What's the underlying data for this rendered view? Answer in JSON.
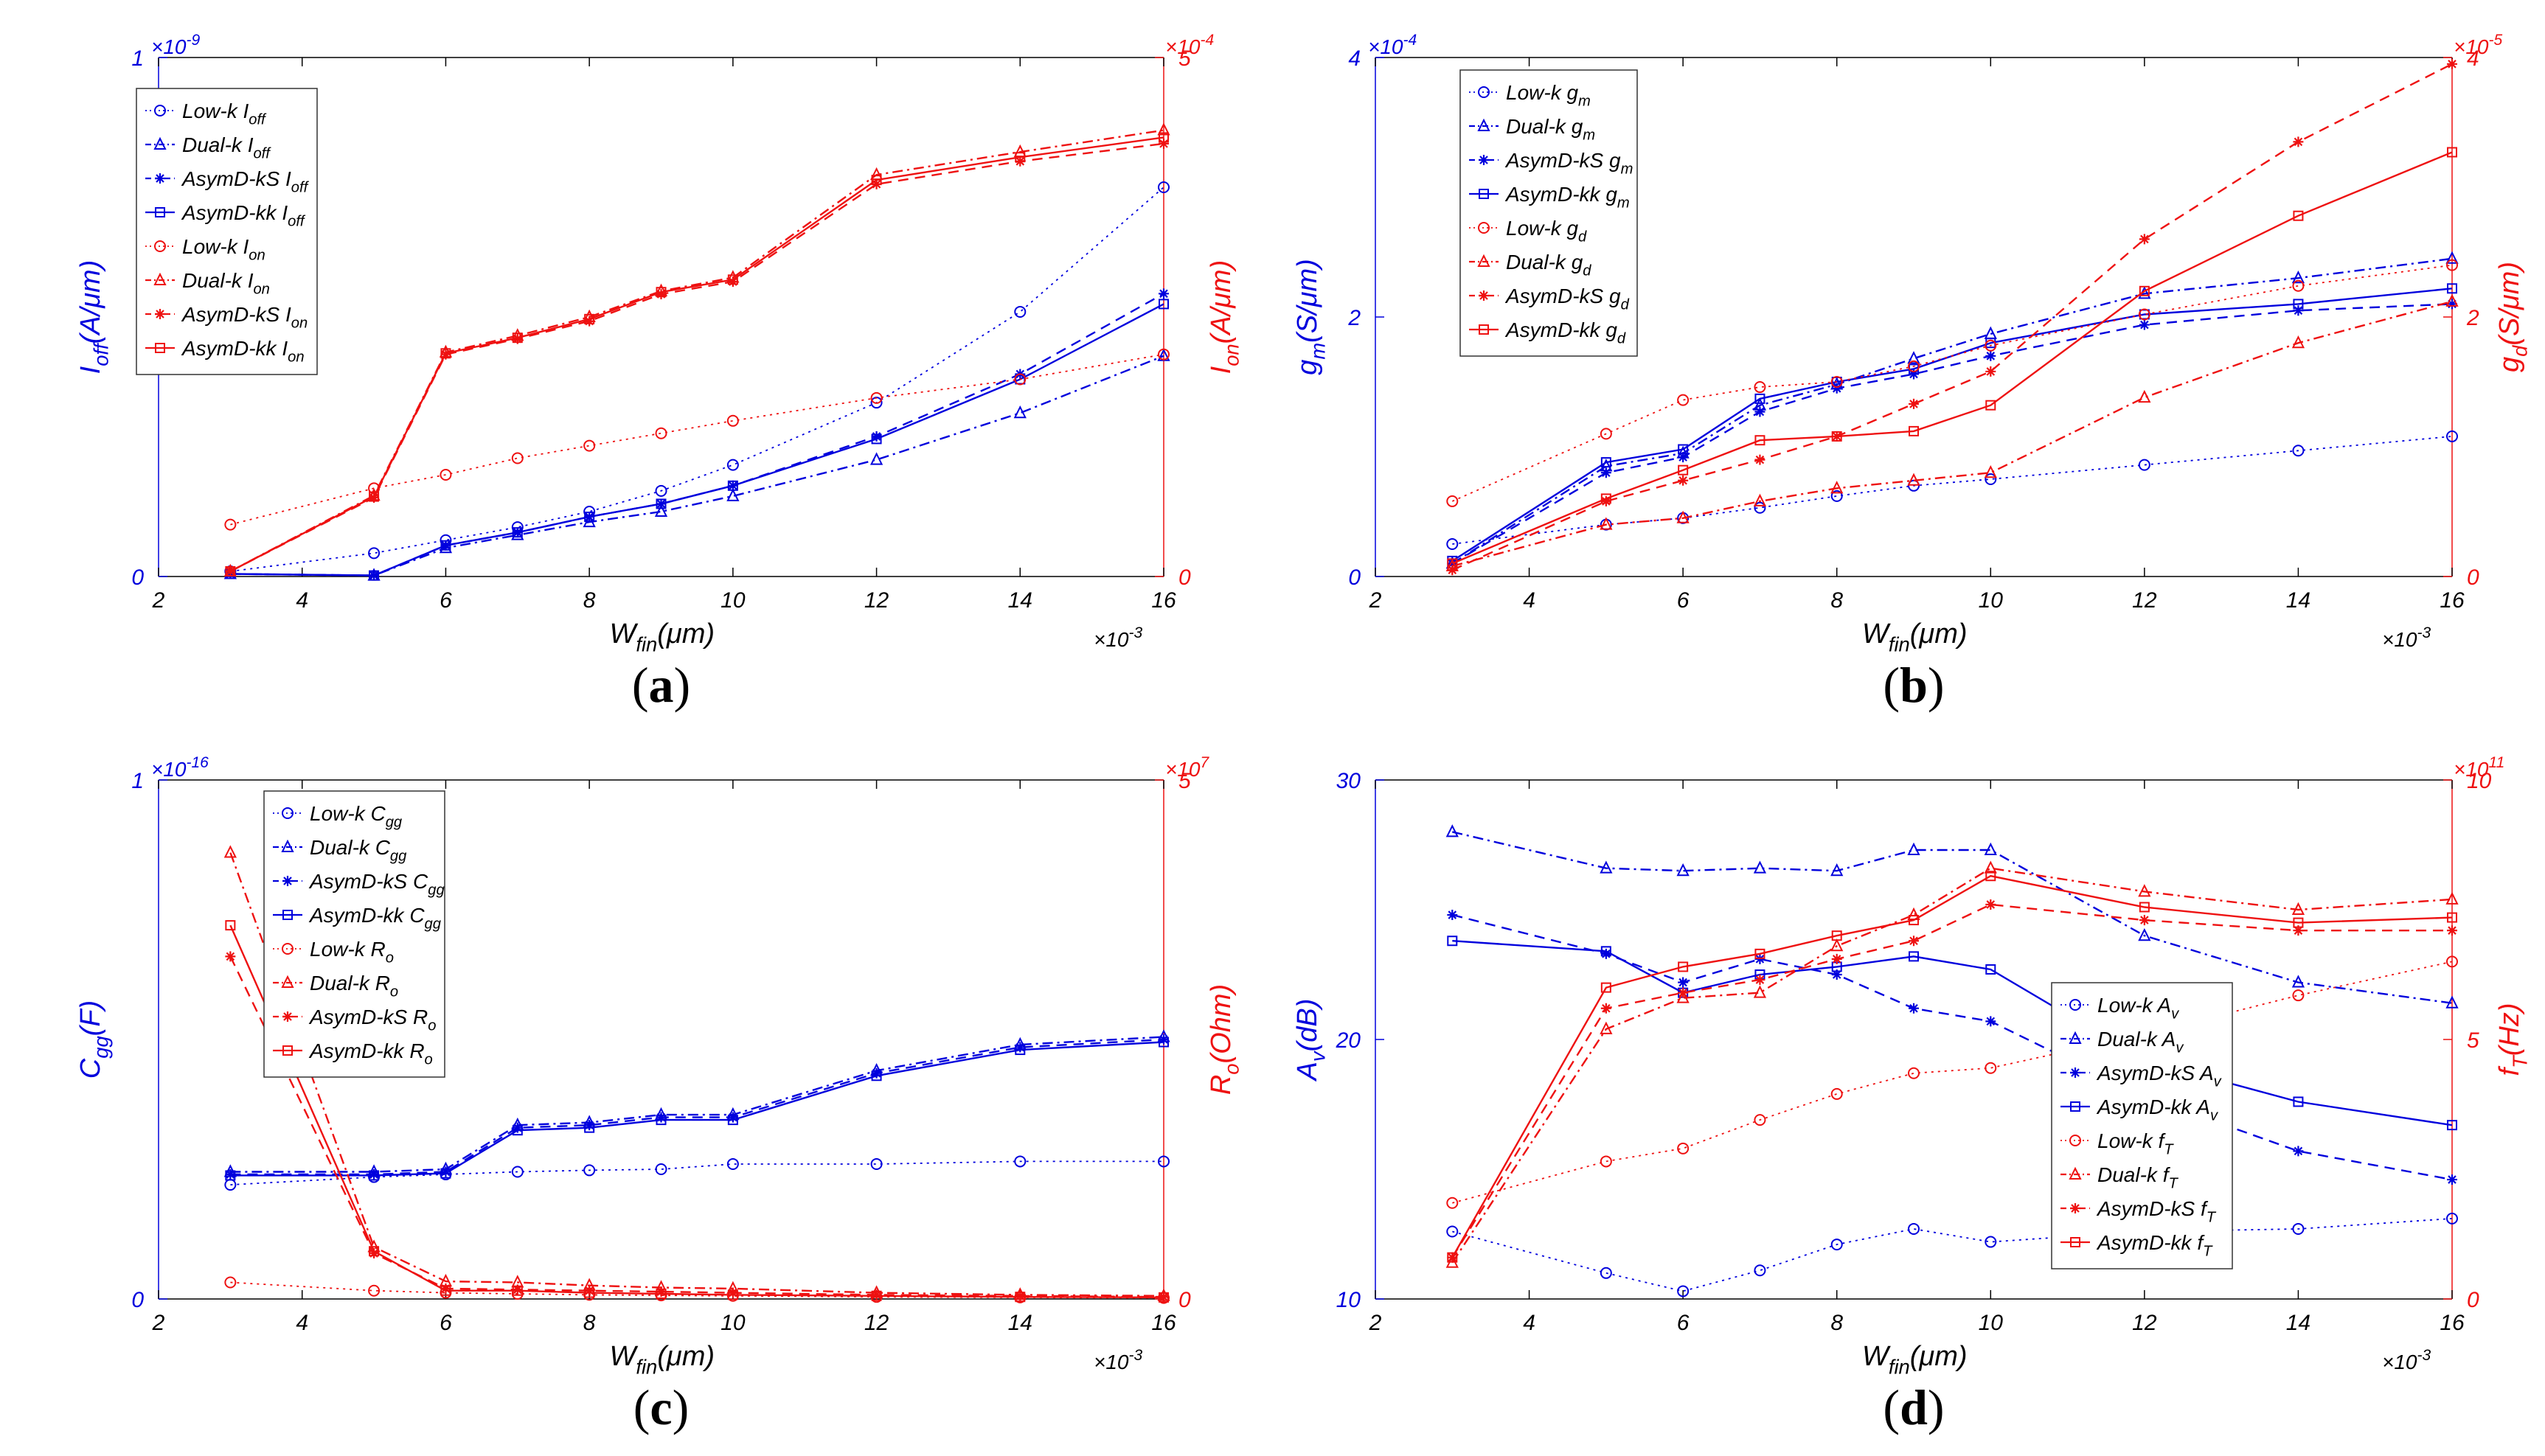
{
  "chart_data": [
    {
      "type": "line",
      "panel_label": "(a)",
      "x_multiplier": "×10",
      "x_multiplier_exp": "-3",
      "xticks": [
        2,
        4,
        6,
        8,
        10,
        12,
        14,
        16
      ],
      "xlim": [
        2,
        16
      ],
      "xlabel": {
        "main": "W",
        "sub": "fin",
        "tail": "(μm)"
      },
      "left": {
        "label": {
          "main": "I",
          "sub": "off",
          "tail": "(A/μm)"
        },
        "multiplier": "×10",
        "multiplier_exp": "-9",
        "ylim": [
          0,
          1
        ],
        "ticks": [
          0,
          1
        ],
        "color": "#0000dd"
      },
      "right": {
        "label": {
          "main": "I",
          "sub": "on",
          "tail": "(A/μm)"
        },
        "multiplier": "×10",
        "multiplier_exp": "-4",
        "ylim": [
          0,
          5
        ],
        "ticks": [
          0,
          5
        ],
        "color": "#ee1111"
      },
      "x": [
        3,
        5,
        6,
        7,
        8,
        9,
        10,
        12,
        14,
        16
      ],
      "legend": {
        "position": "top-left"
      },
      "series": [
        {
          "name": "Low-k",
          "sym": "I",
          "sub": "off",
          "axis": "left",
          "color": "#0000dd",
          "dash": "dotted",
          "marker": "circle",
          "values": [
            0.01,
            0.045,
            0.07,
            0.095,
            0.125,
            0.165,
            0.215,
            0.335,
            0.51,
            0.75
          ]
        },
        {
          "name": "Dual-k",
          "sym": "I",
          "sub": "off",
          "axis": "left",
          "color": "#0000dd",
          "dash": "dashdot",
          "marker": "triangle",
          "values": [
            0.005,
            0.002,
            0.055,
            0.08,
            0.105,
            0.125,
            0.155,
            0.225,
            0.315,
            0.425
          ]
        },
        {
          "name": "AsymD-kS",
          "sym": "I",
          "sub": "off",
          "axis": "left",
          "color": "#0000dd",
          "dash": "dashed",
          "marker": "star",
          "values": [
            0.005,
            0.002,
            0.06,
            0.085,
            0.115,
            0.14,
            0.175,
            0.27,
            0.39,
            0.545
          ]
        },
        {
          "name": "AsymD-kk",
          "sym": "I",
          "sub": "off",
          "axis": "left",
          "color": "#0000dd",
          "dash": "solid",
          "marker": "square",
          "values": [
            0.005,
            0.002,
            0.06,
            0.085,
            0.115,
            0.14,
            0.175,
            0.265,
            0.38,
            0.525
          ]
        },
        {
          "name": "Low-k",
          "sym": "I",
          "sub": "on",
          "axis": "right",
          "color": "#ee1111",
          "dash": "dotted",
          "marker": "circle",
          "values": [
            0.5,
            0.85,
            0.98,
            1.14,
            1.26,
            1.38,
            1.5,
            1.72,
            1.9,
            2.14
          ]
        },
        {
          "name": "Dual-k",
          "sym": "I",
          "sub": "on",
          "axis": "right",
          "color": "#ee1111",
          "dash": "dashdot",
          "marker": "triangle",
          "values": [
            0.05,
            0.78,
            2.16,
            2.32,
            2.5,
            2.75,
            2.88,
            3.87,
            4.09,
            4.3
          ]
        },
        {
          "name": "AsymD-kS",
          "sym": "I",
          "sub": "on",
          "axis": "right",
          "color": "#ee1111",
          "dash": "dashed",
          "marker": "star",
          "values": [
            0.05,
            0.76,
            2.14,
            2.29,
            2.46,
            2.72,
            2.84,
            3.78,
            4.0,
            4.17
          ]
        },
        {
          "name": "AsymD-kk",
          "sym": "I",
          "sub": "on",
          "axis": "right",
          "color": "#ee1111",
          "dash": "solid",
          "marker": "square",
          "values": [
            0.05,
            0.77,
            2.15,
            2.3,
            2.48,
            2.74,
            2.86,
            3.82,
            4.04,
            4.23
          ]
        }
      ]
    },
    {
      "type": "line",
      "panel_label": "(b)",
      "x_multiplier": "×10",
      "x_multiplier_exp": "-3",
      "xticks": [
        2,
        4,
        6,
        8,
        10,
        12,
        14,
        16
      ],
      "xlim": [
        2,
        16
      ],
      "xlabel": {
        "main": "W",
        "sub": "fin",
        "tail": "(μm)"
      },
      "left": {
        "label": {
          "main": "g",
          "sub": "m",
          "tail": "(S/μm)"
        },
        "multiplier": "×10",
        "multiplier_exp": "-4",
        "ylim": [
          0,
          4
        ],
        "ticks": [
          0,
          2,
          4
        ],
        "color": "#0000dd"
      },
      "right": {
        "label": {
          "main": "g",
          "sub": "d",
          "tail": "(S/μm)"
        },
        "multiplier": "×10",
        "multiplier_exp": "-5",
        "ylim": [
          0,
          4
        ],
        "ticks": [
          0,
          2,
          4
        ],
        "color": "#ee1111"
      },
      "x": [
        3,
        5,
        6,
        7,
        8,
        9,
        10,
        12,
        14,
        16
      ],
      "legend": {
        "position": "top-left"
      },
      "series": [
        {
          "name": "Low-k",
          "sym": "g",
          "sub": "m",
          "axis": "left",
          "color": "#0000dd",
          "dash": "dotted",
          "marker": "circle",
          "values": [
            0.25,
            0.4,
            0.45,
            0.53,
            0.62,
            0.7,
            0.75,
            0.86,
            0.97,
            1.08
          ]
        },
        {
          "name": "Dual-k",
          "sym": "g",
          "sub": "m",
          "axis": "left",
          "color": "#0000dd",
          "dash": "dashdot",
          "marker": "triangle",
          "values": [
            0.1,
            0.85,
            0.95,
            1.32,
            1.48,
            1.68,
            1.87,
            2.18,
            2.3,
            2.45
          ]
        },
        {
          "name": "AsymD-kS",
          "sym": "g",
          "sub": "m",
          "axis": "left",
          "color": "#0000dd",
          "dash": "dashed",
          "marker": "star",
          "values": [
            0.1,
            0.8,
            0.92,
            1.27,
            1.45,
            1.56,
            1.7,
            1.94,
            2.05,
            2.1
          ]
        },
        {
          "name": "AsymD-kk",
          "sym": "g",
          "sub": "m",
          "axis": "left",
          "color": "#0000dd",
          "dash": "solid",
          "marker": "square",
          "values": [
            0.12,
            0.88,
            0.98,
            1.37,
            1.5,
            1.6,
            1.8,
            2.02,
            2.1,
            2.22
          ]
        },
        {
          "name": "Low-k",
          "sym": "g",
          "sub": "d",
          "axis": "right",
          "color": "#ee1111",
          "dash": "dotted",
          "marker": "circle",
          "values": [
            0.58,
            1.1,
            1.36,
            1.46,
            1.5,
            1.62,
            1.78,
            2.02,
            2.24,
            2.4
          ]
        },
        {
          "name": "Dual-k",
          "sym": "g",
          "sub": "d",
          "axis": "right",
          "color": "#ee1111",
          "dash": "dashdot",
          "marker": "triangle",
          "values": [
            0.08,
            0.4,
            0.45,
            0.58,
            0.68,
            0.74,
            0.8,
            1.38,
            1.8,
            2.12
          ]
        },
        {
          "name": "AsymD-kS",
          "sym": "g",
          "sub": "d",
          "axis": "right",
          "color": "#ee1111",
          "dash": "dashed",
          "marker": "star",
          "values": [
            0.05,
            0.58,
            0.74,
            0.9,
            1.08,
            1.33,
            1.58,
            2.6,
            3.35,
            3.95
          ]
        },
        {
          "name": "AsymD-kk",
          "sym": "g",
          "sub": "d",
          "axis": "right",
          "color": "#ee1111",
          "dash": "solid",
          "marker": "square",
          "values": [
            0.1,
            0.6,
            0.82,
            1.05,
            1.08,
            1.12,
            1.32,
            2.2,
            2.78,
            3.27
          ]
        }
      ]
    },
    {
      "type": "line",
      "panel_label": "(c)",
      "x_multiplier": "×10",
      "x_multiplier_exp": "-3",
      "xticks": [
        2,
        4,
        6,
        8,
        10,
        12,
        14,
        16
      ],
      "xlim": [
        2,
        16
      ],
      "xlabel": {
        "main": "W",
        "sub": "fin",
        "tail": "(μm)"
      },
      "left": {
        "label": {
          "main": "C",
          "sub": "gg",
          "tail": "(F)"
        },
        "multiplier": "×10",
        "multiplier_exp": "-16",
        "ylim": [
          0,
          1
        ],
        "ticks": [
          0,
          1
        ],
        "color": "#0000dd"
      },
      "right": {
        "label": {
          "main": "R",
          "sub": "o",
          "tail": "(Ohm)"
        },
        "multiplier": "×10",
        "multiplier_exp": "7",
        "ylim": [
          0,
          5
        ],
        "ticks": [
          0,
          5
        ],
        "color": "#ee1111"
      },
      "x": [
        3,
        5,
        6,
        7,
        8,
        9,
        10,
        12,
        14,
        16
      ],
      "legend": {
        "position": "top-left"
      },
      "series": [
        {
          "name": "Low-k",
          "sym": "C",
          "sub": "gg",
          "axis": "left",
          "color": "#0000dd",
          "dash": "dotted",
          "marker": "circle",
          "values": [
            0.22,
            0.235,
            0.24,
            0.245,
            0.248,
            0.25,
            0.26,
            0.26,
            0.265,
            0.265
          ]
        },
        {
          "name": "Dual-k",
          "sym": "C",
          "sub": "gg",
          "axis": "left",
          "color": "#0000dd",
          "dash": "dashdot",
          "marker": "triangle",
          "values": [
            0.245,
            0.245,
            0.25,
            0.335,
            0.34,
            0.355,
            0.355,
            0.44,
            0.49,
            0.505
          ]
        },
        {
          "name": "AsymD-kS",
          "sym": "C",
          "sub": "gg",
          "axis": "left",
          "color": "#0000dd",
          "dash": "dashed",
          "marker": "star",
          "values": [
            0.24,
            0.24,
            0.245,
            0.33,
            0.335,
            0.35,
            0.35,
            0.435,
            0.485,
            0.5
          ]
        },
        {
          "name": "AsymD-kk",
          "sym": "C",
          "sub": "gg",
          "axis": "left",
          "color": "#0000dd",
          "dash": "solid",
          "marker": "square",
          "values": [
            0.238,
            0.238,
            0.242,
            0.325,
            0.33,
            0.345,
            0.345,
            0.43,
            0.48,
            0.495
          ]
        },
        {
          "name": "Low-k",
          "sym": "R",
          "sub": "o",
          "axis": "right",
          "color": "#ee1111",
          "dash": "dotted",
          "marker": "circle",
          "values": [
            0.16,
            0.08,
            0.06,
            0.05,
            0.04,
            0.035,
            0.03,
            0.02,
            0.015,
            0.01
          ]
        },
        {
          "name": "Dual-k",
          "sym": "R",
          "sub": "o",
          "axis": "right",
          "color": "#ee1111",
          "dash": "dashdot",
          "marker": "triangle",
          "values": [
            4.3,
            0.5,
            0.17,
            0.16,
            0.13,
            0.11,
            0.1,
            0.06,
            0.04,
            0.03
          ]
        },
        {
          "name": "AsymD-kS",
          "sym": "R",
          "sub": "o",
          "axis": "right",
          "color": "#ee1111",
          "dash": "dashed",
          "marker": "star",
          "values": [
            3.3,
            0.44,
            0.1,
            0.09,
            0.08,
            0.07,
            0.06,
            0.04,
            0.03,
            0.02
          ]
        },
        {
          "name": "AsymD-kk",
          "sym": "R",
          "sub": "o",
          "axis": "right",
          "color": "#ee1111",
          "dash": "solid",
          "marker": "square",
          "values": [
            3.6,
            0.46,
            0.08,
            0.08,
            0.06,
            0.05,
            0.04,
            0.03,
            0.02,
            0.015
          ]
        }
      ]
    },
    {
      "type": "line",
      "panel_label": "(d)",
      "x_multiplier": "×10",
      "x_multiplier_exp": "-3",
      "xticks": [
        2,
        4,
        6,
        8,
        10,
        12,
        14,
        16
      ],
      "xlim": [
        2,
        16
      ],
      "xlabel": {
        "main": "W",
        "sub": "fin",
        "tail": "(μm)"
      },
      "left": {
        "label": {
          "main": "A",
          "sub": "v",
          "tail": "(dB)"
        },
        "multiplier": "",
        "multiplier_exp": "",
        "ylim": [
          10,
          30
        ],
        "ticks": [
          10,
          20,
          30
        ],
        "color": "#0000dd"
      },
      "right": {
        "label": {
          "main": "f",
          "sub": "T",
          "tail": "(Hz)"
        },
        "multiplier": "×10",
        "multiplier_exp": "11",
        "ylim": [
          0,
          10
        ],
        "ticks": [
          0,
          5,
          10
        ],
        "color": "#ee1111"
      },
      "x": [
        3,
        5,
        6,
        7,
        8,
        9,
        10,
        12,
        14,
        16
      ],
      "legend": {
        "position": "center-right"
      },
      "series": [
        {
          "name": "Low-k",
          "sym": "A",
          "sub": "v",
          "axis": "left",
          "color": "#0000dd",
          "dash": "dotted",
          "marker": "circle",
          "values": [
            12.6,
            11.0,
            10.3,
            11.1,
            12.1,
            12.7,
            12.2,
            12.6,
            12.7,
            13.1
          ]
        },
        {
          "name": "Dual-k",
          "sym": "A",
          "sub": "v",
          "axis": "left",
          "color": "#0000dd",
          "dash": "dashdot",
          "marker": "triangle",
          "values": [
            28.0,
            26.6,
            26.5,
            26.6,
            26.5,
            27.3,
            27.3,
            24.0,
            22.2,
            21.4
          ]
        },
        {
          "name": "AsymD-kS",
          "sym": "A",
          "sub": "v",
          "axis": "left",
          "color": "#0000dd",
          "dash": "dashed",
          "marker": "star",
          "values": [
            24.8,
            23.3,
            22.2,
            23.1,
            22.5,
            21.2,
            20.7,
            17.8,
            15.7,
            14.6
          ]
        },
        {
          "name": "AsymD-kk",
          "sym": "A",
          "sub": "v",
          "axis": "left",
          "color": "#0000dd",
          "dash": "solid",
          "marker": "square",
          "values": [
            23.8,
            23.4,
            21.8,
            22.5,
            22.8,
            23.2,
            22.7,
            19.2,
            17.6,
            16.7
          ]
        },
        {
          "name": "Low-k",
          "sym": "f",
          "sub": "T",
          "axis": "right",
          "color": "#ee1111",
          "dash": "dotted",
          "marker": "circle",
          "values": [
            1.85,
            2.65,
            2.9,
            3.45,
            3.95,
            4.35,
            4.45,
            5.1,
            5.85,
            6.5
          ]
        },
        {
          "name": "Dual-k",
          "sym": "f",
          "sub": "T",
          "axis": "right",
          "color": "#ee1111",
          "dash": "dashdot",
          "marker": "triangle",
          "values": [
            0.7,
            5.2,
            5.8,
            5.9,
            6.8,
            7.4,
            8.3,
            7.85,
            7.5,
            7.7
          ]
        },
        {
          "name": "AsymD-kS",
          "sym": "f",
          "sub": "T",
          "axis": "right",
          "color": "#ee1111",
          "dash": "dashed",
          "marker": "star",
          "values": [
            0.8,
            5.6,
            5.9,
            6.15,
            6.55,
            6.9,
            7.6,
            7.3,
            7.1,
            7.1
          ]
        },
        {
          "name": "AsymD-kk",
          "sym": "f",
          "sub": "T",
          "axis": "right",
          "color": "#ee1111",
          "dash": "solid",
          "marker": "square",
          "values": [
            0.8,
            6.0,
            6.4,
            6.65,
            7.0,
            7.3,
            8.15,
            7.55,
            7.25,
            7.35
          ]
        }
      ]
    }
  ]
}
